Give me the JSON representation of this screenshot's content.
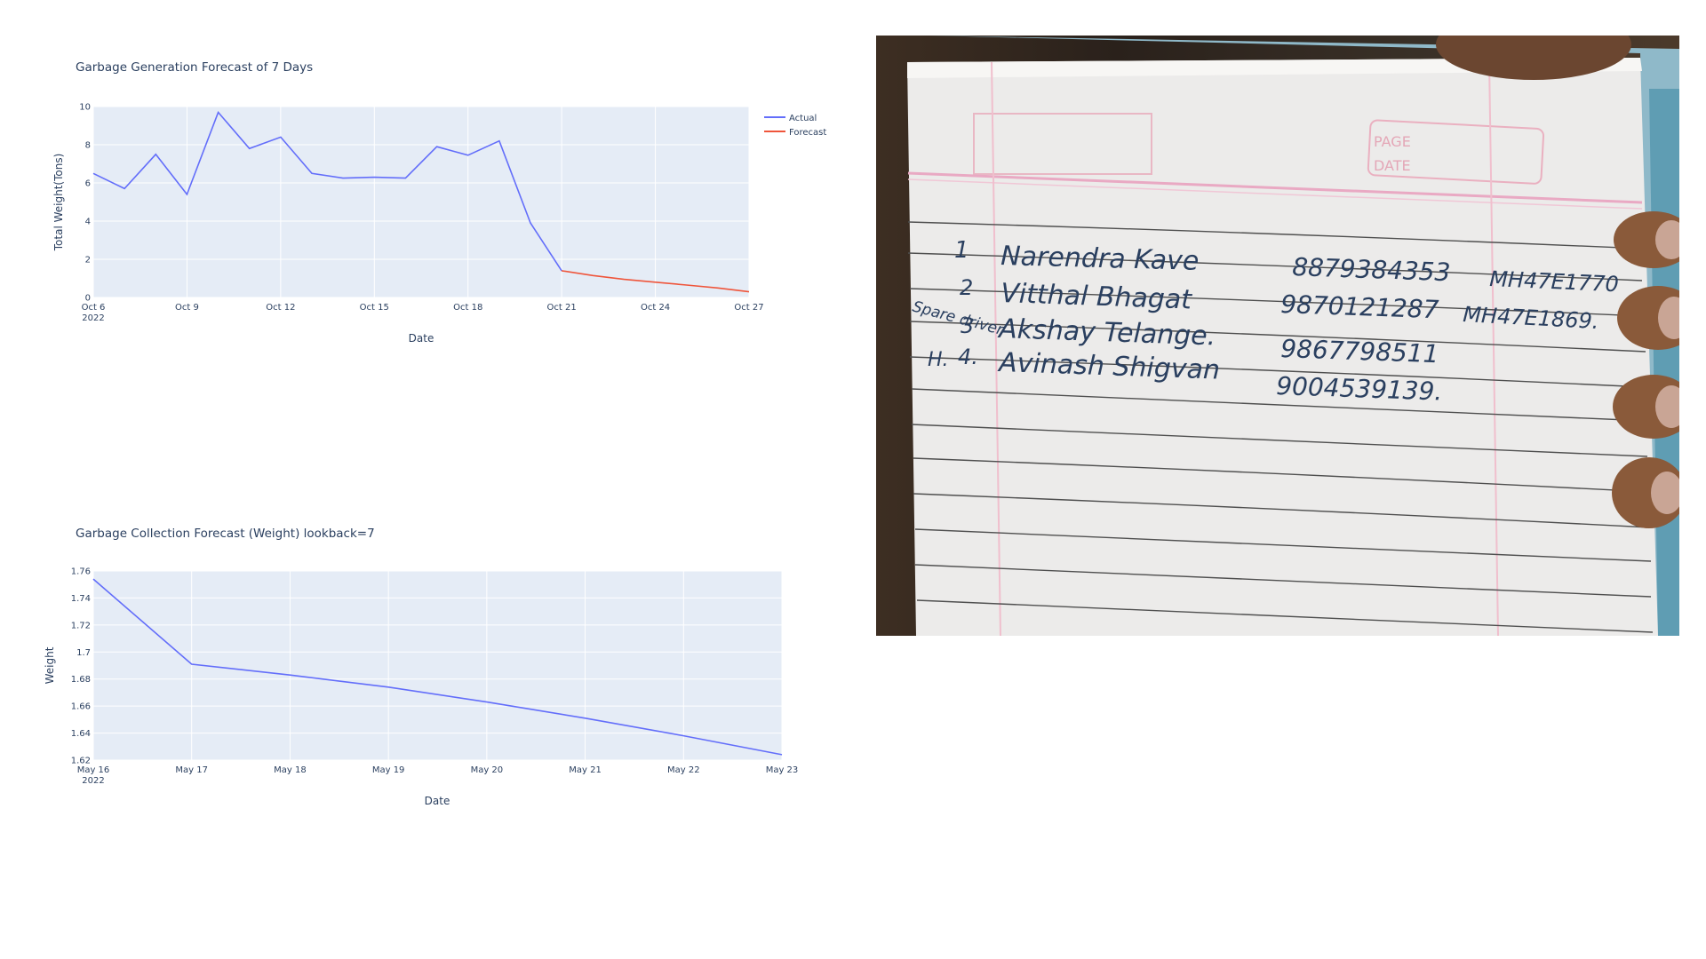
{
  "charts": [
    {
      "title": "Garbage Generation Forecast of 7 Days",
      "xlabel": "Date",
      "ylabel": "Total Weight(Tons)",
      "x_tick_labels": [
        "Oct 6",
        "Oct 9",
        "Oct 12",
        "Oct 15",
        "Oct 18",
        "Oct 21",
        "Oct 24",
        "Oct 27"
      ],
      "x_year_label": "2022",
      "y_tick_labels": [
        "0",
        "2",
        "4",
        "6",
        "8",
        "10"
      ],
      "legend": [
        "Actual",
        "Forecast"
      ]
    },
    {
      "title": "Garbage Collection Forecast (Weight) lookback=7",
      "xlabel": "Date",
      "ylabel": "Weight",
      "x_tick_labels": [
        "May 16",
        "May 17",
        "May 18",
        "May 19",
        "May 20",
        "May 21",
        "May 22",
        "May 23"
      ],
      "x_year_label": "2022",
      "y_tick_labels": [
        "1.62",
        "1.64",
        "1.66",
        "1.68",
        "1.7",
        "1.72",
        "1.74",
        "1.76"
      ]
    }
  ],
  "chart_data": [
    {
      "type": "line",
      "title": "Garbage Generation Forecast of 7 Days",
      "xlabel": "Date",
      "ylabel": "Total Weight(Tons)",
      "ylim": [
        0,
        10
      ],
      "xlim": [
        "2022-10-06",
        "2022-10-27"
      ],
      "grid": true,
      "legend": "right",
      "series": [
        {
          "name": "Actual",
          "color": "#636efa",
          "x": [
            "2022-10-06",
            "2022-10-07",
            "2022-10-08",
            "2022-10-09",
            "2022-10-10",
            "2022-10-11",
            "2022-10-12",
            "2022-10-13",
            "2022-10-14",
            "2022-10-15",
            "2022-10-16",
            "2022-10-17",
            "2022-10-18",
            "2022-10-19",
            "2022-10-20",
            "2022-10-21"
          ],
          "y": [
            6.5,
            5.7,
            7.5,
            5.4,
            9.7,
            7.8,
            8.4,
            6.5,
            6.25,
            6.3,
            6.25,
            7.9,
            7.45,
            8.2,
            3.9,
            1.4
          ]
        },
        {
          "name": "Forecast",
          "color": "#ef553b",
          "x": [
            "2022-10-21",
            "2022-10-22",
            "2022-10-23",
            "2022-10-24",
            "2022-10-25",
            "2022-10-26",
            "2022-10-27"
          ],
          "y": [
            1.4,
            1.15,
            0.95,
            0.8,
            0.65,
            0.5,
            0.3
          ]
        }
      ]
    },
    {
      "type": "line",
      "title": "Garbage Collection Forecast (Weight) lookback=7",
      "xlabel": "Date",
      "ylabel": "Weight",
      "ylim": [
        1.62,
        1.76
      ],
      "xlim": [
        "2022-05-16",
        "2022-05-23"
      ],
      "grid": true,
      "series": [
        {
          "color": "#636efa",
          "x": [
            "2022-05-16",
            "2022-05-17",
            "2022-05-18",
            "2022-05-19",
            "2022-05-20",
            "2022-05-21",
            "2022-05-22",
            "2022-05-23"
          ],
          "y": [
            1.754,
            1.691,
            1.683,
            1.674,
            1.663,
            1.651,
            1.638,
            1.624
          ]
        }
      ]
    }
  ],
  "photo": {
    "rows": [
      {
        "num": "1",
        "name": "Narendra Kave",
        "phone": "8879384353",
        "vehicle": "MH47E1770"
      },
      {
        "num": "2",
        "name": "Vitthal Bhagat",
        "phone": "9870121287",
        "vehicle": "MH47E1869."
      },
      {
        "num": "3",
        "name": "Akshay Telange.",
        "phone": "9867798511",
        "vehicle": ""
      },
      {
        "num": "4.",
        "name": "Avinash Shigvan",
        "phone": "9004539139.",
        "vehicle": ""
      }
    ],
    "margin_note_1": "Spare driver",
    "margin_note_2": "H.",
    "page_label": "PAGE",
    "date_label": "DATE"
  }
}
